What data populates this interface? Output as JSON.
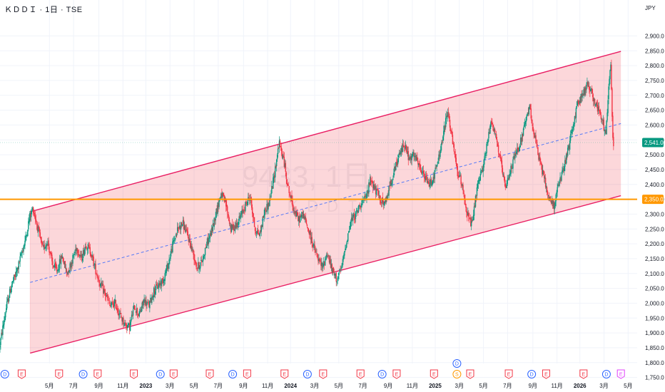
{
  "header": {
    "title": "ＫＤＤＩ · 1日 · TSE"
  },
  "watermark": {
    "symbol": "9433, 1日",
    "name": "ＫＤＤＩ"
  },
  "chart_data": {
    "type": "candlestick",
    "currency": "JPY",
    "ylim": [
      1725,
      2925
    ],
    "y_ticks": [
      1750,
      1800,
      1850,
      1900,
      1950,
      2000,
      2050,
      2100,
      2150,
      2200,
      2250,
      2300,
      2350,
      2400,
      2450,
      2500,
      2550,
      2600,
      2650,
      2700,
      2750,
      2800,
      2850,
      2900
    ],
    "y_tick_labels": [
      "1,750.0",
      "1,800.0",
      "1,850.0",
      "1,900.0",
      "1,950.0",
      "2,000.0",
      "2,050.0",
      "2,100.0",
      "2,150.0",
      "2,200.0",
      "2,250.0",
      "2,300.0",
      "2,350.0",
      "2,400.0",
      "2,450.0",
      "2,500.0",
      "2,550.0",
      "2,600.0",
      "2,650.0",
      "2,700.0",
      "2,750.0",
      "2,800.0",
      "2,850.0",
      "2,900.0"
    ],
    "x_ticks": [
      {
        "label": "5月",
        "t": 4.1,
        "bold": false
      },
      {
        "label": "7月",
        "t": 6.1,
        "bold": false
      },
      {
        "label": "9月",
        "t": 8.2,
        "bold": false
      },
      {
        "label": "11月",
        "t": 10.2,
        "bold": false
      },
      {
        "label": "2023",
        "t": 12.1,
        "bold": true
      },
      {
        "label": "3月",
        "t": 14.1,
        "bold": false
      },
      {
        "label": "5月",
        "t": 16.1,
        "bold": false
      },
      {
        "label": "7月",
        "t": 18.1,
        "bold": false
      },
      {
        "label": "9月",
        "t": 20.2,
        "bold": false
      },
      {
        "label": "11月",
        "t": 22.2,
        "bold": false
      },
      {
        "label": "2024",
        "t": 24.1,
        "bold": true
      },
      {
        "label": "3月",
        "t": 26.1,
        "bold": false
      },
      {
        "label": "5月",
        "t": 28.1,
        "bold": false
      },
      {
        "label": "7月",
        "t": 30.1,
        "bold": false
      },
      {
        "label": "9月",
        "t": 32.2,
        "bold": false
      },
      {
        "label": "11月",
        "t": 34.2,
        "bold": false
      },
      {
        "label": "2025",
        "t": 36.1,
        "bold": true
      },
      {
        "label": "3月",
        "t": 38.1,
        "bold": false
      },
      {
        "label": "5月",
        "t": 40.1,
        "bold": false
      },
      {
        "label": "7月",
        "t": 42.1,
        "bold": false
      },
      {
        "label": "9月",
        "t": 44.2,
        "bold": false
      },
      {
        "label": "11月",
        "t": 46.2,
        "bold": false
      },
      {
        "label": "2026",
        "t": 48.1,
        "bold": true
      },
      {
        "label": "3月",
        "t": 50.1,
        "bold": false
      },
      {
        "label": "5月",
        "t": 52.1,
        "bold": false
      }
    ],
    "price_points": [
      [
        0.0,
        1850
      ],
      [
        0.3,
        1920
      ],
      [
        0.6,
        1990
      ],
      [
        1.0,
        2060
      ],
      [
        1.4,
        2100
      ],
      [
        1.8,
        2160
      ],
      [
        2.2,
        2220
      ],
      [
        2.5,
        2290
      ],
      [
        2.8,
        2320
      ],
      [
        3.2,
        2250
      ],
      [
        3.6,
        2180
      ],
      [
        4.0,
        2210
      ],
      [
        4.4,
        2130
      ],
      [
        4.8,
        2110
      ],
      [
        5.2,
        2160
      ],
      [
        5.6,
        2100
      ],
      [
        6.0,
        2140
      ],
      [
        6.4,
        2190
      ],
      [
        6.8,
        2150
      ],
      [
        7.2,
        2200
      ],
      [
        7.6,
        2170
      ],
      [
        8.0,
        2110
      ],
      [
        8.4,
        2060
      ],
      [
        8.8,
        2030
      ],
      [
        9.2,
        1990
      ],
      [
        9.6,
        2000
      ],
      [
        10.0,
        1960
      ],
      [
        10.4,
        1930
      ],
      [
        10.8,
        1920
      ],
      [
        11.2,
        1990
      ],
      [
        11.6,
        1960
      ],
      [
        12.0,
        2010
      ],
      [
        12.4,
        1990
      ],
      [
        12.8,
        2040
      ],
      [
        13.2,
        2060
      ],
      [
        13.6,
        2080
      ],
      [
        14.0,
        2130
      ],
      [
        14.4,
        2200
      ],
      [
        14.8,
        2250
      ],
      [
        15.2,
        2270
      ],
      [
        15.6,
        2230
      ],
      [
        16.0,
        2180
      ],
      [
        16.4,
        2120
      ],
      [
        16.8,
        2140
      ],
      [
        17.2,
        2200
      ],
      [
        17.6,
        2240
      ],
      [
        18.0,
        2310
      ],
      [
        18.4,
        2370
      ],
      [
        18.8,
        2330
      ],
      [
        19.2,
        2250
      ],
      [
        19.6,
        2260
      ],
      [
        20.0,
        2290
      ],
      [
        20.4,
        2330
      ],
      [
        20.8,
        2360
      ],
      [
        21.2,
        2250
      ],
      [
        21.6,
        2230
      ],
      [
        22.0,
        2310
      ],
      [
        22.4,
        2340
      ],
      [
        22.8,
        2430
      ],
      [
        23.2,
        2540
      ],
      [
        23.6,
        2480
      ],
      [
        24.0,
        2380
      ],
      [
        24.4,
        2320
      ],
      [
        24.8,
        2280
      ],
      [
        25.2,
        2300
      ],
      [
        25.6,
        2250
      ],
      [
        26.0,
        2200
      ],
      [
        26.4,
        2150
      ],
      [
        26.8,
        2120
      ],
      [
        27.2,
        2170
      ],
      [
        27.6,
        2110
      ],
      [
        28.0,
        2080
      ],
      [
        28.4,
        2120
      ],
      [
        28.8,
        2210
      ],
      [
        29.2,
        2280
      ],
      [
        29.6,
        2300
      ],
      [
        30.0,
        2340
      ],
      [
        30.4,
        2350
      ],
      [
        30.8,
        2420
      ],
      [
        31.2,
        2380
      ],
      [
        31.6,
        2350
      ],
      [
        32.0,
        2330
      ],
      [
        32.4,
        2400
      ],
      [
        32.8,
        2450
      ],
      [
        33.2,
        2500
      ],
      [
        33.6,
        2540
      ],
      [
        34.0,
        2480
      ],
      [
        34.4,
        2500
      ],
      [
        34.8,
        2460
      ],
      [
        35.2,
        2430
      ],
      [
        35.6,
        2400
      ],
      [
        36.0,
        2420
      ],
      [
        36.4,
        2480
      ],
      [
        36.8,
        2560
      ],
      [
        37.2,
        2650
      ],
      [
        37.6,
        2540
      ],
      [
        38.0,
        2440
      ],
      [
        38.4,
        2400
      ],
      [
        38.8,
        2300
      ],
      [
        39.2,
        2260
      ],
      [
        39.6,
        2380
      ],
      [
        40.0,
        2440
      ],
      [
        40.4,
        2520
      ],
      [
        40.8,
        2620
      ],
      [
        41.2,
        2560
      ],
      [
        41.6,
        2470
      ],
      [
        42.0,
        2380
      ],
      [
        42.4,
        2450
      ],
      [
        42.8,
        2500
      ],
      [
        43.2,
        2540
      ],
      [
        43.6,
        2600
      ],
      [
        44.0,
        2660
      ],
      [
        44.4,
        2560
      ],
      [
        44.8,
        2480
      ],
      [
        45.2,
        2420
      ],
      [
        45.6,
        2350
      ],
      [
        46.0,
        2330
      ],
      [
        46.4,
        2400
      ],
      [
        46.8,
        2450
      ],
      [
        47.2,
        2520
      ],
      [
        47.6,
        2600
      ],
      [
        48.0,
        2680
      ],
      [
        48.4,
        2700
      ],
      [
        48.8,
        2740
      ],
      [
        49.2,
        2700
      ],
      [
        49.6,
        2660
      ],
      [
        50.0,
        2620
      ],
      [
        50.3,
        2560
      ],
      [
        50.5,
        2700
      ],
      [
        50.7,
        2820
      ],
      [
        50.9,
        2541
      ]
    ],
    "channel": {
      "upper": [
        [
          2.5,
          2308
        ],
        [
          51.5,
          2848
        ]
      ],
      "lower": [
        [
          2.5,
          1832
        ],
        [
          51.5,
          2362
        ]
      ],
      "mid": [
        [
          2.5,
          2070
        ],
        [
          51.5,
          2605
        ]
      ],
      "fill": "#f23645",
      "line_color": "#e91e63",
      "mid_color": "#2962ff"
    },
    "horizontal_line": {
      "value": 2350,
      "label": "2,350.0",
      "color": "#ff9800"
    },
    "last_price": {
      "value": 2541,
      "label": "2,541.0",
      "color": "#089981"
    },
    "events": [
      {
        "type": "D",
        "t": 0.4,
        "row": 0
      },
      {
        "type": "E",
        "t": 1.8,
        "row": 0
      },
      {
        "type": "E",
        "t": 4.9,
        "row": 0
      },
      {
        "type": "D",
        "t": 6.9,
        "row": 0
      },
      {
        "type": "E",
        "t": 8.1,
        "row": 0
      },
      {
        "type": "E",
        "t": 11.1,
        "row": 0
      },
      {
        "type": "D",
        "t": 13.3,
        "row": 0
      },
      {
        "type": "E",
        "t": 14.4,
        "row": 0
      },
      {
        "type": "E",
        "t": 17.4,
        "row": 0
      },
      {
        "type": "D",
        "t": 19.3,
        "row": 0
      },
      {
        "type": "E",
        "t": 20.5,
        "row": 0
      },
      {
        "type": "E",
        "t": 23.6,
        "row": 0
      },
      {
        "type": "D",
        "t": 25.5,
        "row": 0
      },
      {
        "type": "E",
        "t": 26.8,
        "row": 0
      },
      {
        "type": "E",
        "t": 29.9,
        "row": 0
      },
      {
        "type": "D",
        "t": 31.7,
        "row": 0
      },
      {
        "type": "E",
        "t": 32.9,
        "row": 0
      },
      {
        "type": "E",
        "t": 36.0,
        "row": 0
      },
      {
        "type": "D",
        "t": 37.9,
        "row": -1
      },
      {
        "type": "S",
        "t": 37.9,
        "row": 0
      },
      {
        "type": "E",
        "t": 39.0,
        "row": 0
      },
      {
        "type": "E",
        "t": 42.2,
        "row": 0
      },
      {
        "type": "D",
        "t": 44.1,
        "row": 0
      },
      {
        "type": "E",
        "t": 45.3,
        "row": 0
      },
      {
        "type": "E",
        "t": 48.4,
        "row": 0
      },
      {
        "type": "D",
        "t": 50.3,
        "row": 0
      },
      {
        "type": "E",
        "t": 51.5,
        "row": 0
      }
    ],
    "colors": {
      "up": "#089981",
      "down": "#f23645"
    }
  }
}
